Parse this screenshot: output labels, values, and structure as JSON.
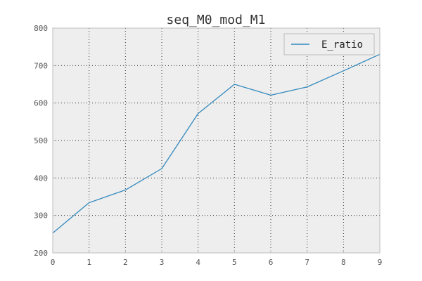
{
  "chart_data": {
    "type": "line",
    "title": "seq_M0_mod_M1",
    "xlabel": "",
    "ylabel": "",
    "x": [
      0,
      1,
      2,
      3,
      4,
      5,
      6,
      7,
      8,
      9
    ],
    "series": [
      {
        "name": "E_ratio",
        "values": [
          253,
          334,
          368,
          425,
          572,
          650,
          621,
          643,
          686,
          730
        ],
        "color": "#348abd"
      }
    ],
    "xlim": [
      0,
      9
    ],
    "ylim": [
      200,
      800
    ],
    "xticks": [
      "0",
      "1",
      "2",
      "3",
      "4",
      "5",
      "6",
      "7",
      "8",
      "9"
    ],
    "yticks": [
      "200",
      "300",
      "400",
      "500",
      "600",
      "700",
      "800"
    ],
    "grid": true,
    "legend": "top-right",
    "background_color": "#eeeeee"
  }
}
